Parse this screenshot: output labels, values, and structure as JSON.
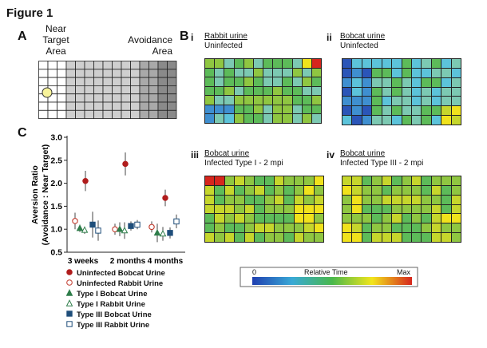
{
  "figure": {
    "title": "Figure 1",
    "panel_a_letter": "A",
    "panel_b_letter": "B",
    "panel_c_letter": "C",
    "near_target_label": [
      "Near",
      "Target",
      "Area"
    ],
    "avoidance_label": [
      "Avoidance",
      "Area"
    ]
  },
  "heatmaps": [
    {
      "roman": "i",
      "title": "Rabbit urine",
      "subtitle": "Uninfected"
    },
    {
      "roman": "ii",
      "title": "Bobcat urine",
      "subtitle": "Uninfected"
    },
    {
      "roman": "iii",
      "title": "Bobcat urine",
      "subtitle": "Infected Type I - 2 mpi"
    },
    {
      "roman": "iv",
      "title": "Bobcat urine",
      "subtitle": "Infected Type III - 2 mpi"
    }
  ],
  "colorbar": {
    "min_label": "0",
    "mid_label": "Relative Time",
    "max_label": "Max"
  },
  "chart_data": {
    "type": "scatter",
    "ylabel": "Aversion Ratio\n(Avoidance : Near Target)",
    "ylabel_line1": "Aversion Ratio",
    "ylabel_line2": "(Avoidance : Near Target)",
    "ylim": [
      0.5,
      3.0
    ],
    "yticks": [
      "0.5",
      "1.0",
      "1.5",
      "2.0",
      "2.5",
      "3.0"
    ],
    "categories": [
      "3 weeks",
      "2 months",
      "4 months"
    ],
    "series": [
      {
        "name": "Uninfected Bobcat Urine",
        "marker": "circle-filled",
        "color": "#b01c1c",
        "values": [
          2.05,
          2.42,
          1.68
        ],
        "err": [
          0.22,
          0.25,
          0.18
        ]
      },
      {
        "name": "Uninfected Rabbit Urine",
        "marker": "circle-open",
        "color": "#c0392b",
        "values": [
          1.18,
          1.0,
          1.05
        ],
        "err": [
          0.18,
          0.12,
          0.12
        ]
      },
      {
        "name": "Type I Bobcat Urine",
        "marker": "triangle-filled",
        "color": "#2e7d4a",
        "values": [
          1.02,
          1.0,
          0.92
        ],
        "err": [
          0.08,
          0.15,
          0.2
        ]
      },
      {
        "name": "Type I Rabbit Urine",
        "marker": "triangle-open",
        "color": "#2e7d4a",
        "values": [
          0.98,
          0.97,
          0.9
        ],
        "err": [
          0.08,
          0.18,
          0.15
        ]
      },
      {
        "name": "Type III Bobcat Urine",
        "marker": "square-filled",
        "color": "#1f4e7a",
        "values": [
          1.1,
          1.07,
          0.92
        ],
        "err": [
          0.28,
          0.1,
          0.12
        ]
      },
      {
        "name": "Type III Rabbit Urine",
        "marker": "square-open",
        "color": "#1f4e7a",
        "values": [
          0.97,
          1.1,
          1.17
        ],
        "err": [
          0.22,
          0.1,
          0.15
        ]
      }
    ]
  }
}
